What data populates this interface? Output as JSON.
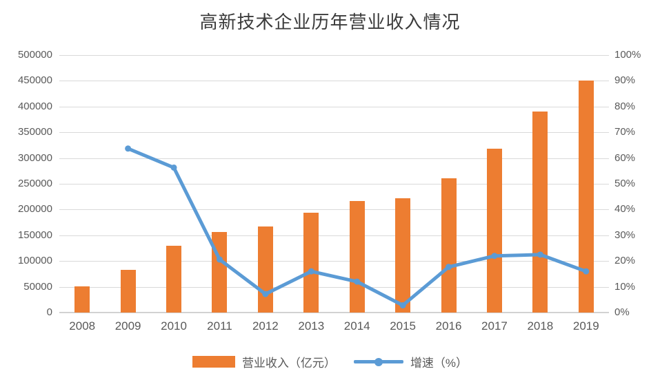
{
  "title": "高新技术企业历年营业收入情况",
  "legend": {
    "items": [
      {
        "label": "营业收入（亿元）",
        "swatch": "bar-swatch",
        "color": "#ED7D31"
      },
      {
        "label": "增速（%）",
        "swatch": "line-swatch",
        "color": "#5B9BD5"
      }
    ]
  },
  "colors": {
    "bar": "#ED7D31",
    "line": "#5B9BD5",
    "grid": "#D9D9D9",
    "axis_text": "#595959",
    "title_text": "#3B3B3B"
  },
  "chart_data": {
    "type": "bar",
    "subtype": "combo-bar-line-dual-axis",
    "title": "高新技术企业历年营业收入情况",
    "categories": [
      "2008",
      "2009",
      "2010",
      "2011",
      "2012",
      "2013",
      "2014",
      "2015",
      "2016",
      "2017",
      "2018",
      "2019"
    ],
    "series": [
      {
        "name": "营业收入（亿元）",
        "type": "bar",
        "axis": "left",
        "color": "#ED7D31",
        "values": [
          51000,
          83000,
          130000,
          156000,
          167000,
          194000,
          216000,
          222000,
          261000,
          318000,
          390000,
          451000
        ]
      },
      {
        "name": "增速（%）",
        "type": "line",
        "axis": "right",
        "color": "#5B9BD5",
        "values": [
          null,
          63.7,
          56.3,
          20.6,
          7.2,
          16,
          12,
          2.8,
          17.7,
          22,
          22.5,
          16
        ]
      }
    ],
    "left_axis": {
      "min": 0,
      "max": 500000,
      "step": 50000,
      "ticks": [
        "500000",
        "450000",
        "400000",
        "350000",
        "300000",
        "250000",
        "200000",
        "150000",
        "100000",
        "50000",
        "0"
      ]
    },
    "right_axis": {
      "min": 0,
      "max": 100,
      "step": 10,
      "ticks": [
        "100%",
        "90%",
        "80%",
        "70%",
        "60%",
        "50%",
        "40%",
        "30%",
        "20%",
        "10%",
        "0%"
      ]
    },
    "grid": true,
    "legend_position": "bottom"
  }
}
